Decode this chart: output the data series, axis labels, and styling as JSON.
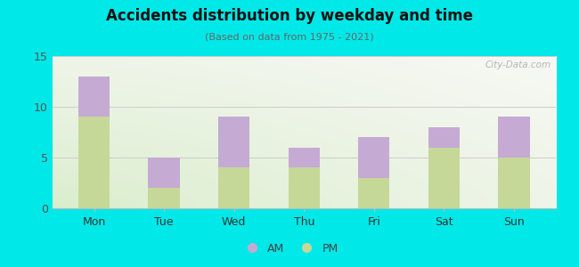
{
  "categories": [
    "Mon",
    "Tue",
    "Wed",
    "Thu",
    "Fri",
    "Sat",
    "Sun"
  ],
  "pm_values": [
    9,
    2,
    4,
    4,
    3,
    6,
    5
  ],
  "am_values": [
    4,
    3,
    5,
    2,
    4,
    2,
    4
  ],
  "pm_color": "#c5d898",
  "am_color": "#c5aad4",
  "title": "Accidents distribution by weekday and time",
  "subtitle": "(Based on data from 1975 - 2021)",
  "ylim": [
    0,
    15
  ],
  "yticks": [
    0,
    5,
    10,
    15
  ],
  "background_color": "#00e8e8",
  "bar_width": 0.45,
  "legend_labels": [
    "AM",
    "PM"
  ],
  "watermark": "© City-Data.com"
}
